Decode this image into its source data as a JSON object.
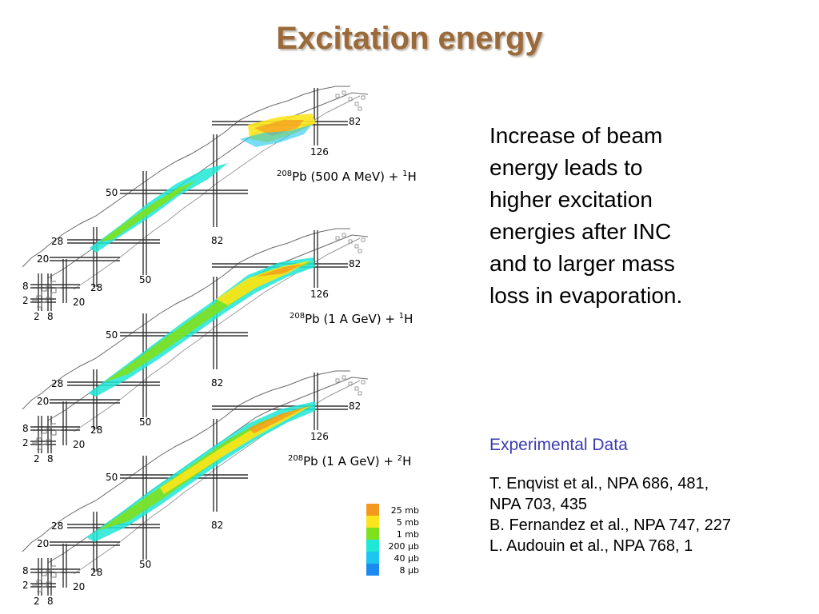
{
  "slide": {
    "title": "Excitation energy",
    "title_color": "#9b6a3a",
    "body_lines": [
      "Increase of beam",
      "energy leads to",
      "higher excitation",
      "energies after INC",
      "and to larger mass",
      "loss in evaporation."
    ],
    "exp_heading": "Experimental Data",
    "exp_heading_color": "#3b3bb0",
    "references": [
      "T. Enqvist et al., NPA 686, 481,",
      "NPA 703, 435",
      "B. Fernandez et al., NPA 747, 227",
      "L. Audouin et al., NPA 768, 1"
    ]
  },
  "panels": [
    {
      "reaction": {
        "sup1": "208",
        "elem": "Pb",
        "energy": " (500 A MeV) + ",
        "sup2": "1",
        "target": "H"
      },
      "magic_labels": {
        "p82": "82",
        "n126": "126",
        "p50": "50",
        "n82": "82",
        "p28": "28",
        "p20": "20",
        "n50": "50",
        "n28": "28",
        "p8": "8",
        "p2": "2",
        "n20": "20",
        "n2": "2",
        "n8": "8"
      }
    },
    {
      "reaction": {
        "sup1": "208",
        "elem": "Pb",
        "energy": " (1 A GeV) + ",
        "sup2": "1",
        "target": "H"
      },
      "magic_labels": {
        "p82": "82",
        "n126": "126",
        "p50": "50",
        "n82": "82",
        "p28": "28",
        "p20": "20",
        "n50": "50",
        "n28": "28",
        "p8": "8",
        "p2": "2",
        "n20": "20",
        "n2": "2",
        "n8": "8"
      }
    },
    {
      "reaction": {
        "sup1": "208",
        "elem": "Pb",
        "energy": " (1 A GeV) + ",
        "sup2": "2",
        "target": "H"
      },
      "magic_labels": {
        "p82": "82",
        "n126": "126",
        "p50": "50",
        "n82": "82",
        "p28": "28",
        "p20": "20",
        "n50": "50",
        "n28": "28",
        "p8": "8",
        "p2": "2",
        "n20": "20",
        "n2": "2",
        "n8": "8"
      }
    }
  ],
  "legend": [
    {
      "label": "25 mb",
      "color": "#f39a1e"
    },
    {
      "label": "5 mb",
      "color": "#fbe51c"
    },
    {
      "label": "1 mb",
      "color": "#7fe01c"
    },
    {
      "label": "200 µb",
      "color": "#1fe8d6"
    },
    {
      "label": "40 µb",
      "color": "#1cc6f0"
    },
    {
      "label": "8 µb",
      "color": "#1c8bef"
    }
  ]
}
